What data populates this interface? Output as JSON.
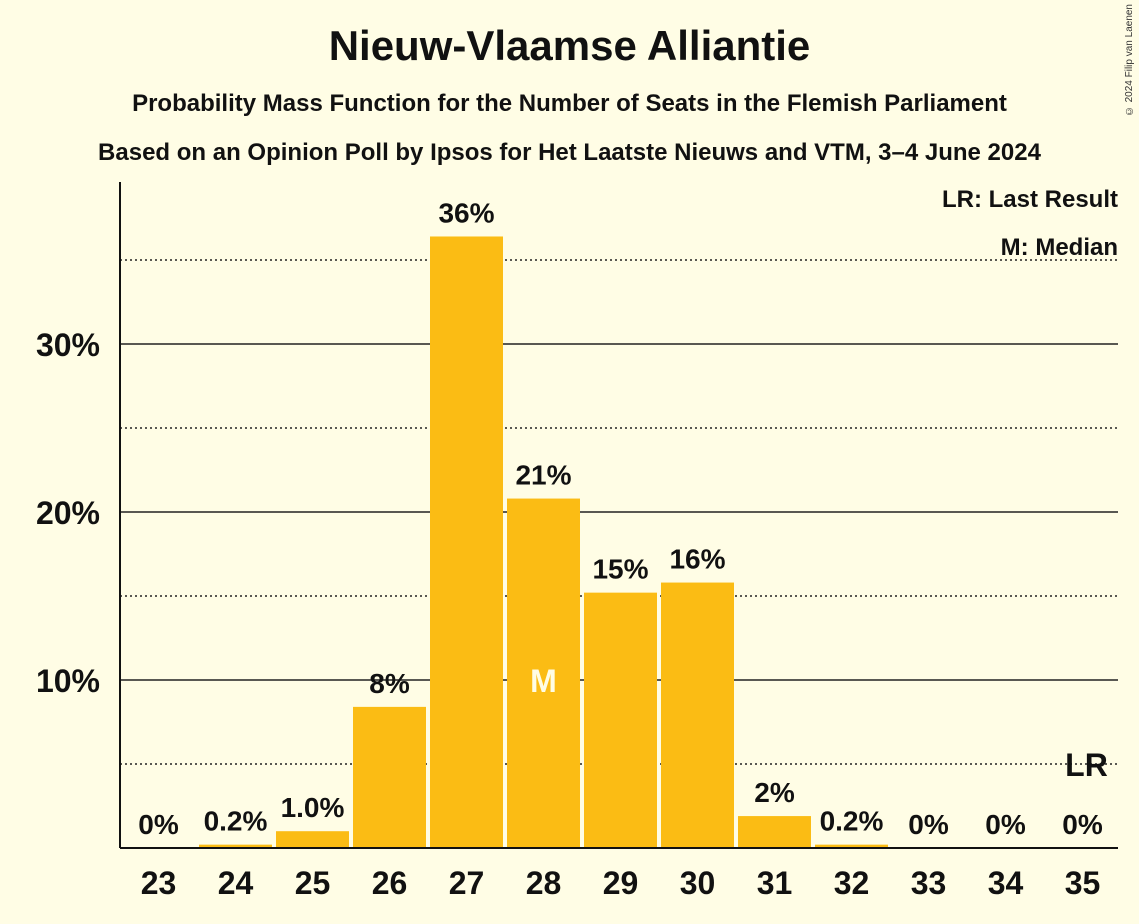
{
  "chart_data": {
    "type": "bar",
    "title": "Nieuw-Vlaamse Alliantie",
    "subtitle": "Probability Mass Function for the Number of Seats in the Flemish Parliament",
    "subtitle2": "Based on an Opinion Poll by Ipsos for Het Laatste Nieuws and VTM, 3–4 June 2024",
    "copyright": "© 2024 Filip van Laenen",
    "legend": [
      "LR: Last Result",
      "M: Median"
    ],
    "categories": [
      "23",
      "24",
      "25",
      "26",
      "27",
      "28",
      "29",
      "30",
      "31",
      "32",
      "33",
      "34",
      "35"
    ],
    "values": [
      0,
      0.2,
      1.0,
      8.4,
      36.4,
      20.8,
      15.2,
      15.8,
      1.9,
      0.2,
      0,
      0,
      0
    ],
    "value_labels": [
      "0%",
      "0.2%",
      "1.0%",
      "8%",
      "36%",
      "21%",
      "15%",
      "16%",
      "2%",
      "0.2%",
      "0%",
      "0%",
      "0%"
    ],
    "y_ticks": [
      10,
      20,
      30
    ],
    "y_tick_labels": [
      "10%",
      "20%",
      "30%"
    ],
    "ylim": [
      0,
      39
    ],
    "median_category": "28",
    "median_label": "M",
    "last_result_category": "35",
    "last_result_label": "LR",
    "bar_color": "#FBBC14",
    "background": "#FFFDE5"
  }
}
